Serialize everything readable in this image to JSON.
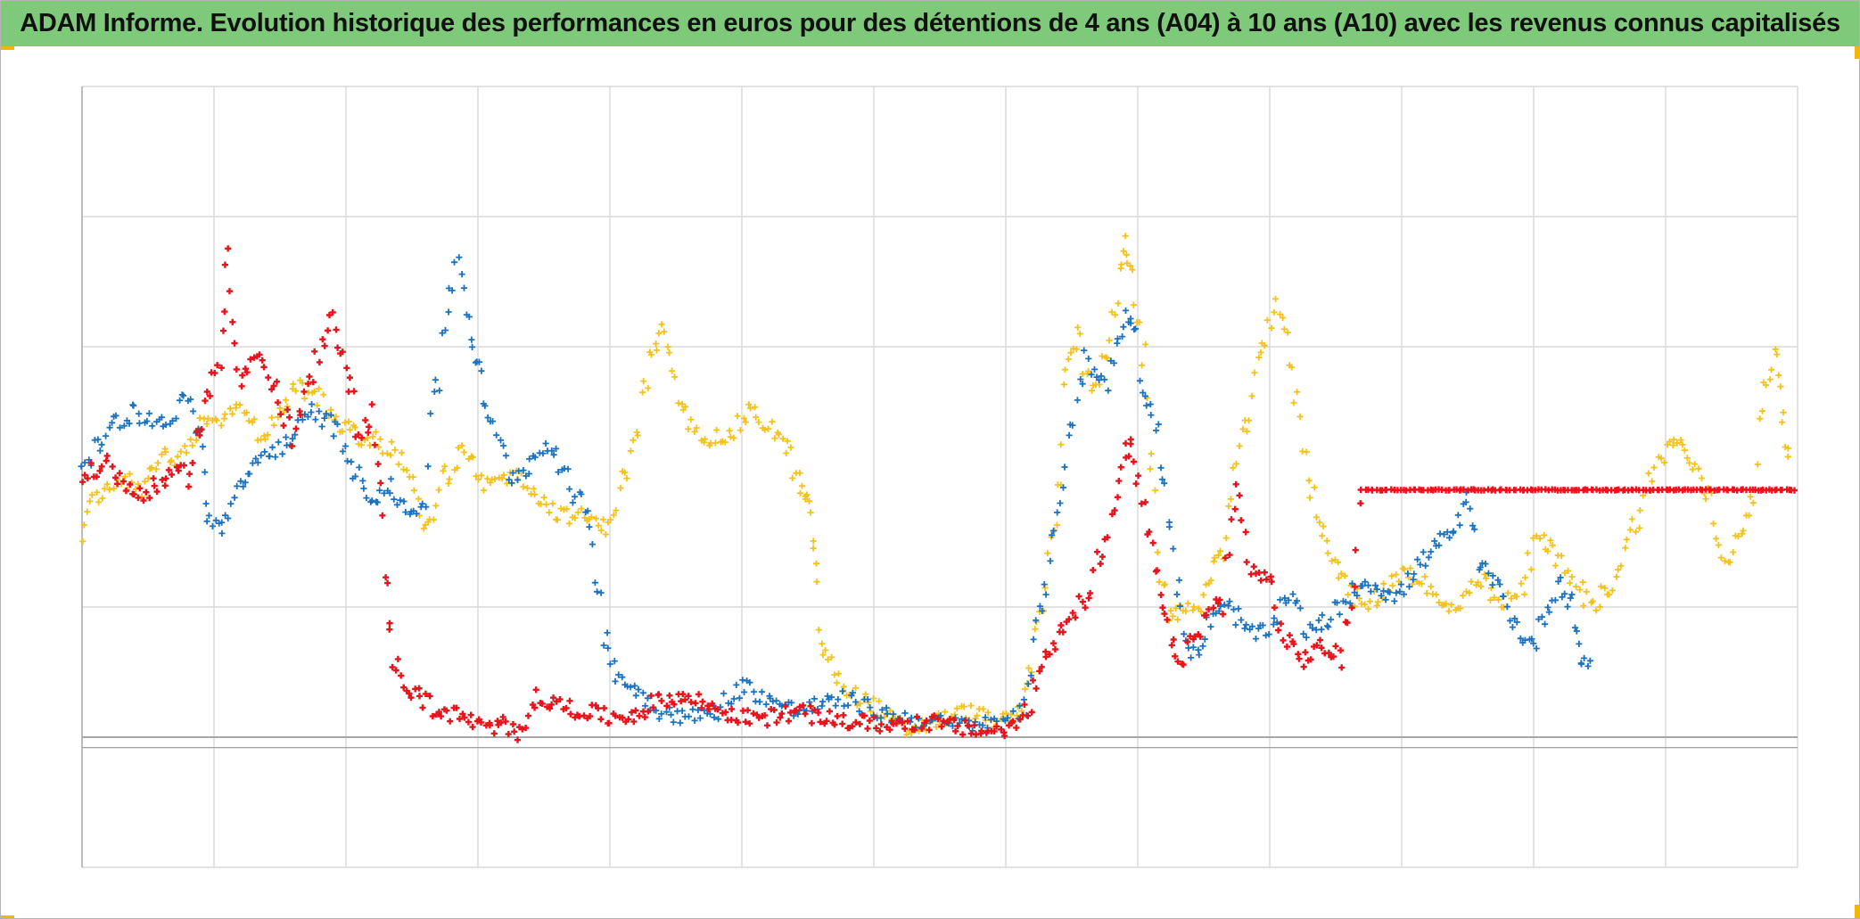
{
  "title": "ADAM Informe. Evolution historique des performances en euros pour des détentions de 4 ans (A04) à 10 ans (A10) avec les revenus connus capitalisés",
  "colors": {
    "title_background": "#7fc97a",
    "corner_accent": "#f2b705",
    "series_red": "#e8141c",
    "series_blue": "#1a72c0",
    "series_yellow": "#f5c21b",
    "gridline": "#d9d9d9",
    "baseline": "#a6a6a6"
  },
  "chart_data": {
    "type": "scatter",
    "title": "ADAM Informe. Evolution historique des performances en euros pour des détentions de 4 ans (A04) à 10 ans (A10) avec les revenus connus capitalisés",
    "marker": "plus",
    "grid": true,
    "legend": "none",
    "axis_labels_visible": false,
    "xlim": [
      0,
      13
    ],
    "ylim": [
      -1,
      5
    ],
    "x_gridline_count": 13,
    "y_gridlines": [
      0,
      1,
      3,
      4
    ],
    "reference_line_y": -0.08,
    "series": [
      {
        "color": "red",
        "points": [
          [
            0,
            2.0
          ],
          [
            0.2,
            2.1
          ],
          [
            0.4,
            1.85
          ],
          [
            0.6,
            1.95
          ],
          [
            0.8,
            2.05
          ],
          [
            0.95,
            2.6
          ],
          [
            1.05,
            2.9
          ],
          [
            1.1,
            3.8
          ],
          [
            1.2,
            2.7
          ],
          [
            1.3,
            2.95
          ],
          [
            1.45,
            2.7
          ],
          [
            1.6,
            2.3
          ],
          [
            1.75,
            2.8
          ],
          [
            1.9,
            3.2
          ],
          [
            2.0,
            2.9
          ],
          [
            2.1,
            2.3
          ],
          [
            2.2,
            2.5
          ],
          [
            2.3,
            1.3
          ],
          [
            2.35,
            0.6
          ],
          [
            2.5,
            0.35
          ],
          [
            2.7,
            0.2
          ],
          [
            2.9,
            0.15
          ],
          [
            3.1,
            0.05
          ],
          [
            3.2,
            0.1
          ],
          [
            3.3,
            0.05
          ],
          [
            3.45,
            0.3
          ],
          [
            3.6,
            0.25
          ],
          [
            3.8,
            0.2
          ],
          [
            4.0,
            0.15
          ],
          [
            4.2,
            0.18
          ],
          [
            4.4,
            0.3
          ],
          [
            4.6,
            0.3
          ],
          [
            4.8,
            0.22
          ],
          [
            5.0,
            0.15
          ],
          [
            5.2,
            0.15
          ],
          [
            5.4,
            0.2
          ],
          [
            5.6,
            0.15
          ],
          [
            5.8,
            0.12
          ],
          [
            6.0,
            0.1
          ],
          [
            6.2,
            0.1
          ],
          [
            6.4,
            0.12
          ],
          [
            6.6,
            0.08
          ],
          [
            6.8,
            0.05
          ],
          [
            7.0,
            0.05
          ],
          [
            7.15,
            0.15
          ],
          [
            7.25,
            0.5
          ],
          [
            7.4,
            0.8
          ],
          [
            7.6,
            1.1
          ],
          [
            7.8,
            1.6
          ],
          [
            7.9,
            2.2
          ],
          [
            7.95,
            2.2
          ],
          [
            8.05,
            1.7
          ],
          [
            8.15,
            1.2
          ],
          [
            8.25,
            0.7
          ],
          [
            8.35,
            0.6
          ],
          [
            8.5,
            0.9
          ],
          [
            8.65,
            1.1
          ],
          [
            8.75,
            1.9
          ],
          [
            8.85,
            1.3
          ],
          [
            9.0,
            1.2
          ],
          [
            9.1,
            0.75
          ],
          [
            9.25,
            0.6
          ],
          [
            9.4,
            0.7
          ],
          [
            9.55,
            0.6
          ],
          [
            9.7,
            1.9
          ],
          [
            9.85,
            1.9
          ],
          [
            10.0,
            1.9
          ],
          [
            10.5,
            1.9
          ],
          [
            11.0,
            1.9
          ],
          [
            11.5,
            1.9
          ],
          [
            12.0,
            1.9
          ],
          [
            12.5,
            1.9
          ],
          [
            13.0,
            1.9
          ]
        ]
      },
      {
        "color": "blue",
        "points": [
          [
            0,
            2.0
          ],
          [
            0.2,
            2.4
          ],
          [
            0.4,
            2.5
          ],
          [
            0.6,
            2.4
          ],
          [
            0.8,
            2.6
          ],
          [
            0.9,
            2.3
          ],
          [
            0.95,
            1.7
          ],
          [
            1.05,
            1.6
          ],
          [
            1.15,
            1.8
          ],
          [
            1.3,
            2.1
          ],
          [
            1.45,
            2.2
          ],
          [
            1.6,
            2.3
          ],
          [
            1.75,
            2.5
          ],
          [
            1.9,
            2.4
          ],
          [
            2.1,
            2.0
          ],
          [
            2.2,
            1.85
          ],
          [
            2.35,
            1.9
          ],
          [
            2.5,
            1.7
          ],
          [
            2.6,
            1.9
          ],
          [
            2.75,
            3.2
          ],
          [
            2.85,
            3.7
          ],
          [
            2.95,
            3.1
          ],
          [
            3.0,
            2.8
          ],
          [
            3.1,
            2.4
          ],
          [
            3.25,
            2.0
          ],
          [
            3.4,
            2.1
          ],
          [
            3.55,
            2.3
          ],
          [
            3.7,
            1.9
          ],
          [
            3.85,
            1.7
          ],
          [
            3.95,
            0.8
          ],
          [
            4.05,
            0.5
          ],
          [
            4.2,
            0.35
          ],
          [
            4.4,
            0.2
          ],
          [
            4.6,
            0.15
          ],
          [
            4.8,
            0.2
          ],
          [
            5.0,
            0.4
          ],
          [
            5.2,
            0.3
          ],
          [
            5.4,
            0.2
          ],
          [
            5.6,
            0.25
          ],
          [
            5.8,
            0.3
          ],
          [
            6.0,
            0.2
          ],
          [
            6.2,
            0.15
          ],
          [
            6.4,
            0.12
          ],
          [
            6.6,
            0.1
          ],
          [
            6.8,
            0.1
          ],
          [
            7.0,
            0.1
          ],
          [
            7.15,
            0.3
          ],
          [
            7.25,
            0.9
          ],
          [
            7.35,
            1.4
          ],
          [
            7.45,
            2.2
          ],
          [
            7.6,
            2.9
          ],
          [
            7.75,
            2.7
          ],
          [
            7.9,
            3.2
          ],
          [
            7.95,
            3.3
          ],
          [
            8.05,
            2.6
          ],
          [
            8.15,
            2.4
          ],
          [
            8.25,
            1.5
          ],
          [
            8.35,
            0.8
          ],
          [
            8.45,
            0.6
          ],
          [
            8.55,
            0.9
          ],
          [
            8.7,
            1.0
          ],
          [
            8.85,
            0.8
          ],
          [
            9.0,
            0.8
          ],
          [
            9.15,
            1.1
          ],
          [
            9.3,
            0.8
          ],
          [
            9.45,
            0.9
          ],
          [
            9.6,
            1.1
          ],
          [
            9.75,
            1.2
          ],
          [
            9.9,
            1.1
          ],
          [
            10.0,
            1.1
          ],
          [
            10.1,
            1.3
          ],
          [
            10.2,
            1.4
          ],
          [
            10.3,
            1.5
          ],
          [
            10.4,
            1.6
          ],
          [
            10.5,
            1.8
          ],
          [
            10.6,
            1.3
          ],
          [
            10.7,
            1.2
          ],
          [
            10.8,
            1.0
          ],
          [
            10.9,
            0.8
          ],
          [
            11.0,
            0.7
          ],
          [
            11.1,
            1.0
          ],
          [
            11.2,
            1.2
          ],
          [
            11.3,
            1.0
          ],
          [
            11.35,
            0.6
          ],
          [
            11.45,
            0.55
          ]
        ]
      },
      {
        "color": "yellow",
        "points": [
          [
            0,
            1.6
          ],
          [
            0.15,
            1.9
          ],
          [
            0.3,
            2.0
          ],
          [
            0.45,
            1.9
          ],
          [
            0.6,
            2.2
          ],
          [
            0.75,
            2.1
          ],
          [
            0.9,
            2.5
          ],
          [
            1.05,
            2.4
          ],
          [
            1.2,
            2.6
          ],
          [
            1.35,
            2.3
          ],
          [
            1.5,
            2.5
          ],
          [
            1.65,
            2.7
          ],
          [
            1.8,
            2.6
          ],
          [
            1.95,
            2.4
          ],
          [
            2.1,
            2.3
          ],
          [
            2.2,
            2.3
          ],
          [
            2.35,
            2.2
          ],
          [
            2.5,
            2.0
          ],
          [
            2.6,
            1.6
          ],
          [
            2.75,
            2.0
          ],
          [
            2.9,
            2.2
          ],
          [
            3.05,
            1.9
          ],
          [
            3.2,
            2.0
          ],
          [
            3.35,
            2.0
          ],
          [
            3.5,
            1.8
          ],
          [
            3.65,
            1.7
          ],
          [
            3.8,
            1.7
          ],
          [
            3.95,
            1.6
          ],
          [
            4.05,
            1.8
          ],
          [
            4.2,
            2.3
          ],
          [
            4.3,
            2.9
          ],
          [
            4.4,
            3.1
          ],
          [
            4.5,
            2.7
          ],
          [
            4.6,
            2.4
          ],
          [
            4.75,
            2.3
          ],
          [
            4.9,
            2.3
          ],
          [
            5.05,
            2.5
          ],
          [
            5.2,
            2.4
          ],
          [
            5.35,
            2.2
          ],
          [
            5.45,
            1.9
          ],
          [
            5.5,
            1.8
          ],
          [
            5.55,
            1.5
          ],
          [
            5.6,
            0.7
          ],
          [
            5.7,
            0.5
          ],
          [
            5.8,
            0.35
          ],
          [
            5.9,
            0.3
          ],
          [
            6.0,
            0.25
          ],
          [
            6.1,
            0.15
          ],
          [
            6.25,
            0.05
          ],
          [
            6.4,
            0.1
          ],
          [
            6.55,
            0.15
          ],
          [
            6.7,
            0.2
          ],
          [
            6.85,
            0.15
          ],
          [
            7.0,
            0.12
          ],
          [
            7.1,
            0.15
          ],
          [
            7.2,
            0.6
          ],
          [
            7.3,
            1.2
          ],
          [
            7.4,
            1.8
          ],
          [
            7.45,
            2.9
          ],
          [
            7.55,
            3.1
          ],
          [
            7.65,
            2.6
          ],
          [
            7.75,
            2.9
          ],
          [
            7.85,
            3.4
          ],
          [
            7.9,
            3.8
          ],
          [
            7.95,
            3.6
          ],
          [
            8.05,
            2.8
          ],
          [
            8.15,
            1.4
          ],
          [
            8.25,
            0.9
          ],
          [
            8.35,
            1.0
          ],
          [
            8.45,
            1.0
          ],
          [
            8.55,
            1.2
          ],
          [
            8.65,
            1.5
          ],
          [
            8.75,
            2.1
          ],
          [
            8.85,
            2.5
          ],
          [
            8.95,
            3.0
          ],
          [
            9.05,
            3.4
          ],
          [
            9.15,
            2.9
          ],
          [
            9.25,
            2.3
          ],
          [
            9.35,
            1.7
          ],
          [
            9.45,
            1.5
          ],
          [
            9.55,
            1.2
          ],
          [
            9.7,
            1.0
          ],
          [
            9.85,
            1.1
          ],
          [
            10.0,
            1.3
          ],
          [
            10.15,
            1.2
          ],
          [
            10.3,
            1.0
          ],
          [
            10.45,
            1.0
          ],
          [
            10.6,
            1.2
          ],
          [
            10.75,
            1.0
          ],
          [
            10.9,
            1.1
          ],
          [
            11.05,
            1.6
          ],
          [
            11.15,
            1.4
          ],
          [
            11.3,
            1.2
          ],
          [
            11.45,
            1.0
          ],
          [
            11.6,
            1.2
          ],
          [
            11.75,
            1.6
          ],
          [
            11.9,
            2.0
          ],
          [
            12.05,
            2.3
          ],
          [
            12.15,
            2.2
          ],
          [
            12.25,
            2.0
          ],
          [
            12.35,
            1.8
          ],
          [
            12.45,
            1.3
          ],
          [
            12.55,
            1.6
          ],
          [
            12.65,
            1.7
          ],
          [
            12.75,
            2.7
          ],
          [
            12.85,
            3.0
          ],
          [
            12.9,
            2.4
          ],
          [
            12.95,
            2.1
          ]
        ]
      }
    ]
  }
}
